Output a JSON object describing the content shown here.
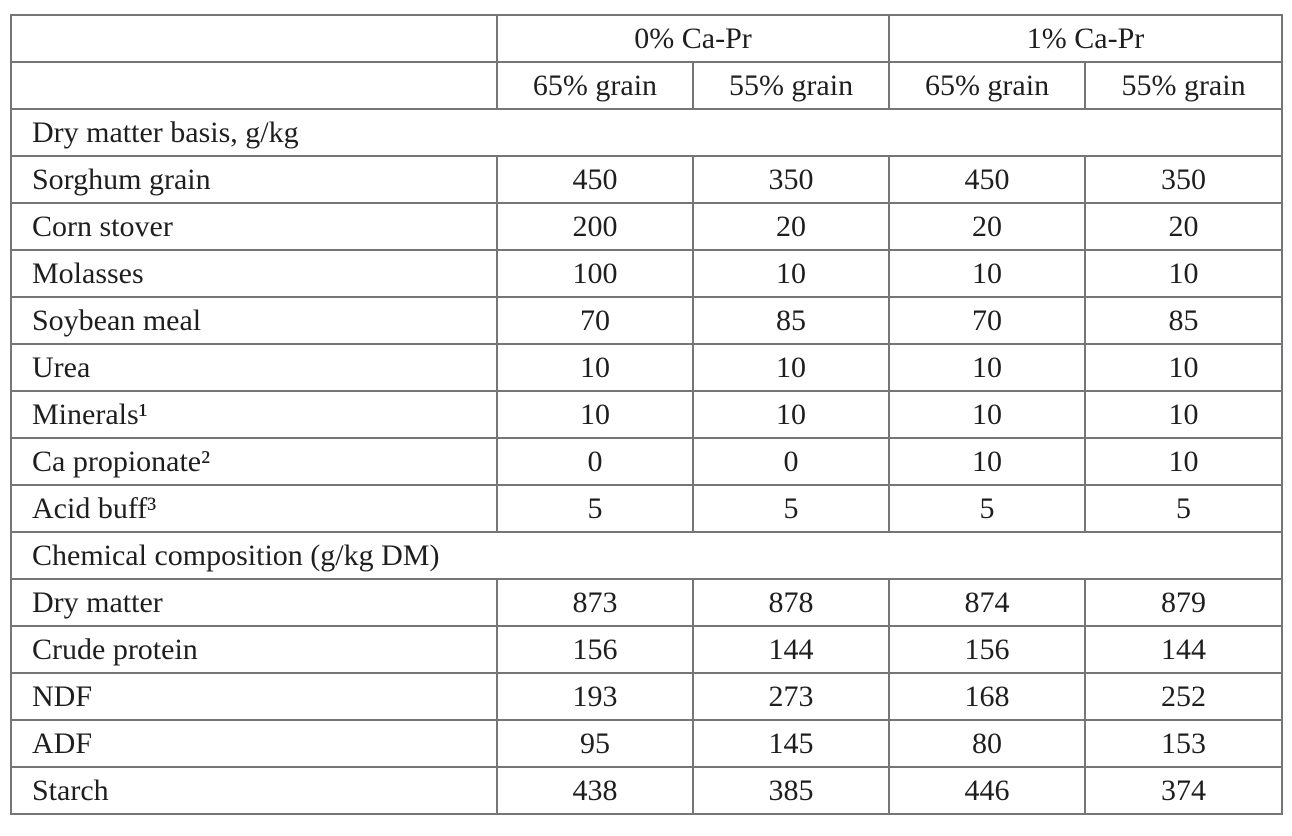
{
  "page": {
    "background": "#ffffff"
  },
  "colors": {
    "border": "#767676",
    "text": "#1e1e1e"
  },
  "table": {
    "column_groups": [
      {
        "label": "0% Ca-Pr",
        "span": 2
      },
      {
        "label": "1% Ca-Pr",
        "span": 2
      }
    ],
    "sub_headers": [
      "65% grain",
      "55% grain",
      "65% grain",
      "55% grain"
    ],
    "sections": [
      {
        "title": "Dry matter basis, g/kg",
        "rows": [
          {
            "label": "Sorghum grain",
            "values": [
              "450",
              "350",
              "450",
              "350"
            ]
          },
          {
            "label": "Corn stover",
            "values": [
              "200",
              "20",
              "20",
              "20"
            ]
          },
          {
            "label": "Molasses",
            "values": [
              "100",
              "10",
              "10",
              "10"
            ]
          },
          {
            "label": "Soybean meal",
            "values": [
              "70",
              "85",
              "70",
              "85"
            ]
          },
          {
            "label": "Urea",
            "values": [
              "10",
              "10",
              "10",
              "10"
            ]
          },
          {
            "label": "Minerals¹",
            "values": [
              "10",
              "10",
              "10",
              "10"
            ]
          },
          {
            "label": "Ca propionate²",
            "values": [
              "0",
              "0",
              "10",
              "10"
            ]
          },
          {
            "label": "Acid buff³",
            "values": [
              "5",
              "5",
              "5",
              "5"
            ]
          }
        ]
      },
      {
        "title": "Chemical composition (g/kg DM)",
        "rows": [
          {
            "label": "Dry matter",
            "values": [
              "873",
              "878",
              "874",
              "879"
            ]
          },
          {
            "label": "Crude protein",
            "values": [
              "156",
              "144",
              "156",
              "144"
            ]
          },
          {
            "label": "NDF",
            "values": [
              "193",
              "273",
              "168",
              "252"
            ]
          },
          {
            "label": "ADF",
            "values": [
              "95",
              "145",
              "80",
              "153"
            ]
          },
          {
            "label": "Starch",
            "values": [
              "438",
              "385",
              "446",
              "374"
            ]
          }
        ]
      }
    ]
  }
}
